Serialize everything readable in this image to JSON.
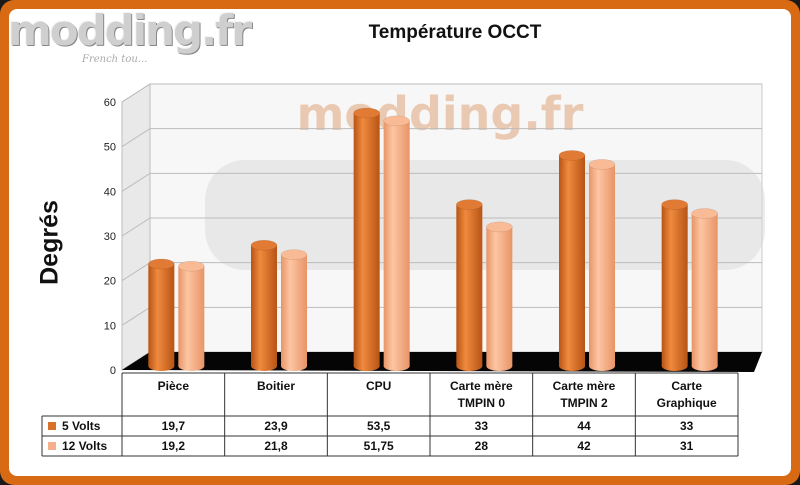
{
  "watermark": {
    "logo": "modding.fr",
    "sub": "French tou...",
    "center": "modding.fr"
  },
  "colors": {
    "series1": "#d9712b",
    "series2": "#f4b08a",
    "frame": "#d86a14"
  },
  "chart_data": {
    "type": "bar",
    "title": "Température OCCT",
    "ylabel": "Degrés",
    "xlabel": "",
    "ylim": [
      0,
      60
    ],
    "yticks": [
      0,
      10,
      20,
      30,
      40,
      50,
      60
    ],
    "categories": [
      [
        "Pièce"
      ],
      [
        "Boitier"
      ],
      [
        "CPU"
      ],
      [
        "Carte mère",
        "TMPIN 0"
      ],
      [
        "Carte mère",
        "TMPIN 2"
      ],
      [
        "Carte",
        "Graphique"
      ]
    ],
    "series": [
      {
        "name": "5 Volts",
        "values": [
          19.7,
          23.9,
          53.5,
          33,
          44,
          33
        ],
        "labels": [
          "19,7",
          "23,9",
          "53,5",
          "33",
          "44",
          "33"
        ]
      },
      {
        "name": "12  Volts",
        "values": [
          19.2,
          21.8,
          51.75,
          28,
          42,
          31
        ],
        "labels": [
          "19,2",
          "21,8",
          "51,75",
          "28",
          "42",
          "31"
        ]
      }
    ],
    "grid": true,
    "legend": "data-table"
  }
}
